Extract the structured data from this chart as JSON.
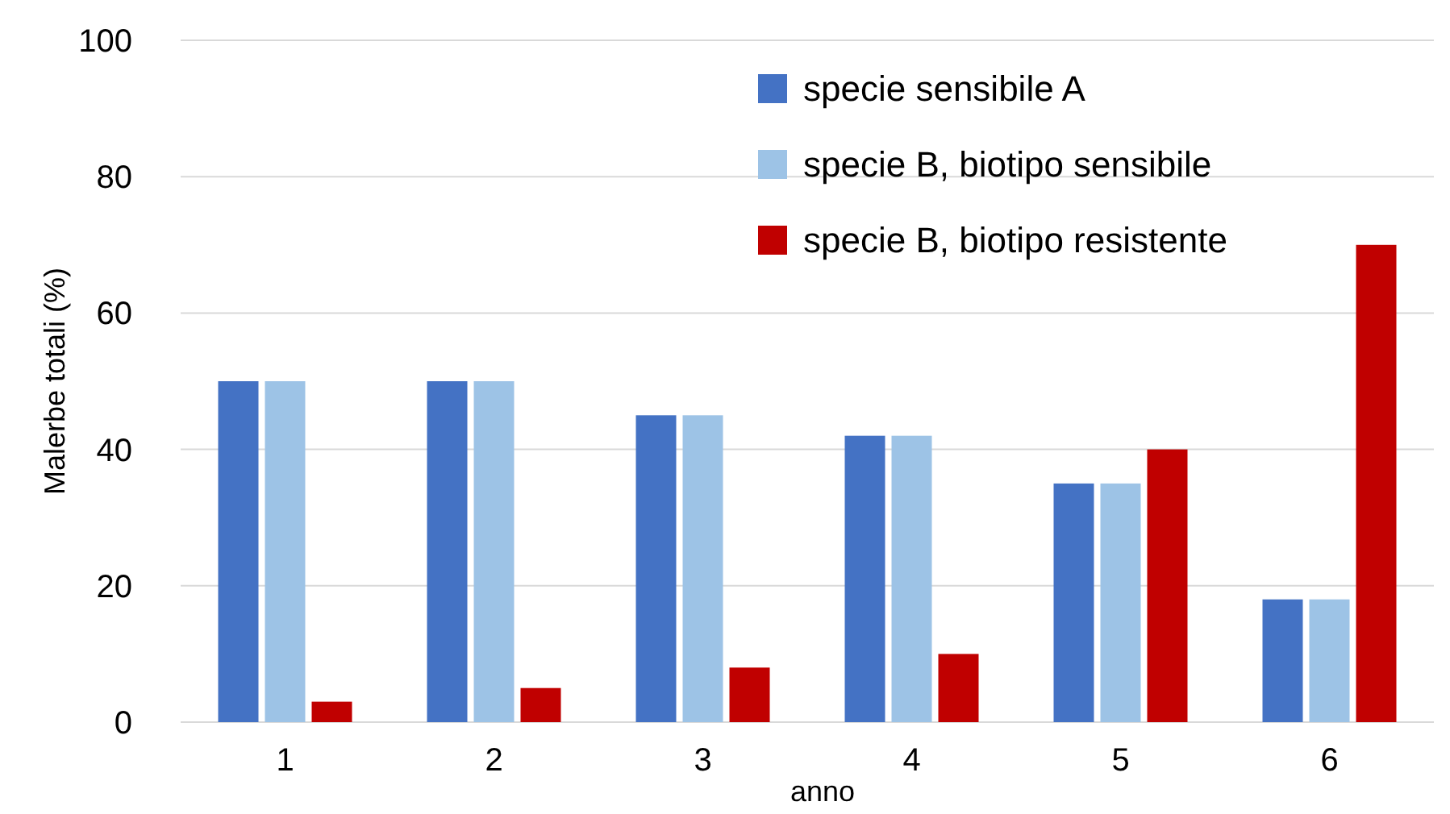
{
  "chart_data": {
    "type": "bar",
    "ylabel": "Malerbe totali (%)",
    "xlabel": "anno",
    "categories": [
      "1",
      "2",
      "3",
      "4",
      "5",
      "6"
    ],
    "series": [
      {
        "name": "specie sensibile A",
        "color": "#4472c4",
        "values": [
          50,
          50,
          45,
          42,
          35,
          18
        ]
      },
      {
        "name": "specie B, biotipo sensibile",
        "color": "#9dc3e6",
        "values": [
          50,
          50,
          45,
          42,
          35,
          18
        ]
      },
      {
        "name": "specie B, biotipo resistente",
        "color": "#c00000",
        "values": [
          3,
          5,
          8,
          10,
          40,
          70
        ]
      }
    ],
    "ylim": [
      0,
      100
    ],
    "yticks": [
      0,
      20,
      40,
      60,
      80,
      100
    ],
    "grid": "y",
    "legend": "top right"
  }
}
